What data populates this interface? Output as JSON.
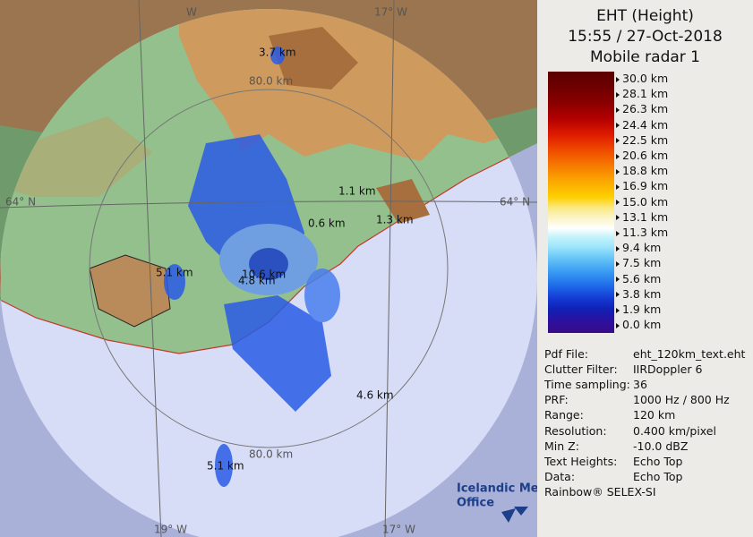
{
  "header": {
    "title": "EHT (Height)",
    "time": "15:55 / 27-Oct-2018",
    "radar": "Mobile radar 1"
  },
  "scale": [
    "30.0 km",
    "28.1 km",
    "26.3 km",
    "24.4 km",
    "22.5 km",
    "20.6 km",
    "18.8 km",
    "16.9 km",
    "15.0 km",
    "13.1 km",
    "11.3 km",
    "9.4 km",
    "7.5 km",
    "5.6 km",
    "3.8 km",
    "1.9 km",
    "0.0 km"
  ],
  "info": [
    [
      "Pdf File:",
      "eht_120km_text.eht"
    ],
    [
      "Clutter Filter:",
      "IIRDoppler 6"
    ],
    [
      "Time sampling:",
      "36"
    ],
    [
      "PRF:",
      "1000 Hz / 800 Hz"
    ],
    [
      "Range:",
      "120 km"
    ],
    [
      "Resolution:",
      "0.400 km/pixel"
    ],
    [
      "Min Z:",
      "-10.0 dBZ"
    ],
    [
      "Text Heights:",
      "Echo Top"
    ],
    [
      "Data:",
      "Echo Top"
    ]
  ],
  "footer": "Rainbow® SELEX-SI",
  "logo": [
    "Icelandic Met",
    "Office"
  ],
  "map": {
    "graticule": [
      "W",
      "17° W",
      "64° N",
      "64° N",
      "19° W",
      "17° W"
    ],
    "rings": [
      "80.0 km",
      "80.0 km"
    ],
    "heights": [
      "3.7 km",
      "1.1 km",
      "0.6 km",
      "1.3 km",
      "5.1 km",
      "10.6 km",
      "4.8 km",
      "4.6 km",
      "5.1 km"
    ]
  }
}
